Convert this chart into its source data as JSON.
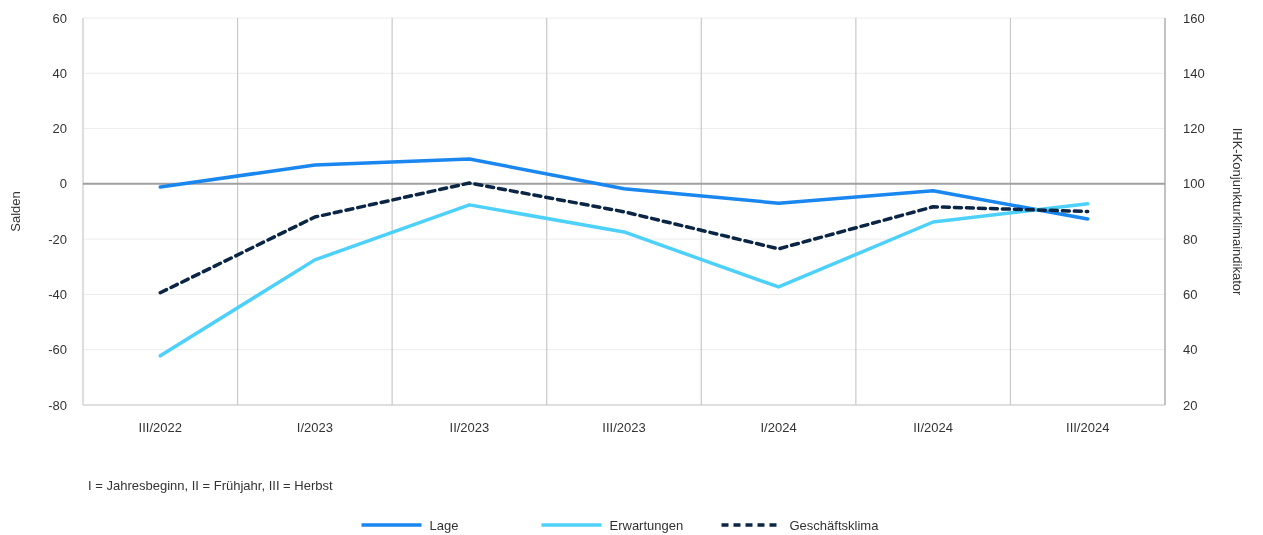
{
  "chart_data": {
    "type": "line",
    "ylabel": "Salden",
    "y2label": "IHK-Konjunkturklimaindikator",
    "categories": [
      "III/2022",
      "I/2023",
      "II/2023",
      "III/2023",
      "I/2024",
      "II/2024",
      "III/2024"
    ],
    "series": [
      {
        "name": "Lage",
        "color": "#1a86f0",
        "values": [
          -1.1,
          6.8,
          9,
          -1.8,
          -7,
          -2.5,
          -12.7
        ]
      },
      {
        "name": "Erwartungen",
        "color": "#4dd0fa",
        "values": [
          -62.2,
          -27.5,
          -7.6,
          -17.4,
          -37.3,
          -13.8,
          -7.2
        ]
      },
      {
        "name": "Geschäftsklima",
        "color": "#0b2545",
        "axis": "y2",
        "line_style": "dashed",
        "values": [
          60.6,
          88,
          100.3,
          89.9,
          76.5,
          91.7,
          90
        ]
      }
    ],
    "ylim": [
      -80,
      60
    ],
    "yticks": [
      -80,
      -60,
      -40,
      -20,
      0,
      20,
      40,
      60
    ],
    "y2lim": [
      20,
      160
    ],
    "y2ticks": [
      20,
      40,
      60,
      80,
      100,
      120,
      140,
      160
    ],
    "grid": true,
    "legend": "bottom",
    "annotations": [
      "I = Jahresbeginn, II = Frühjahr, III = Herbst"
    ]
  }
}
